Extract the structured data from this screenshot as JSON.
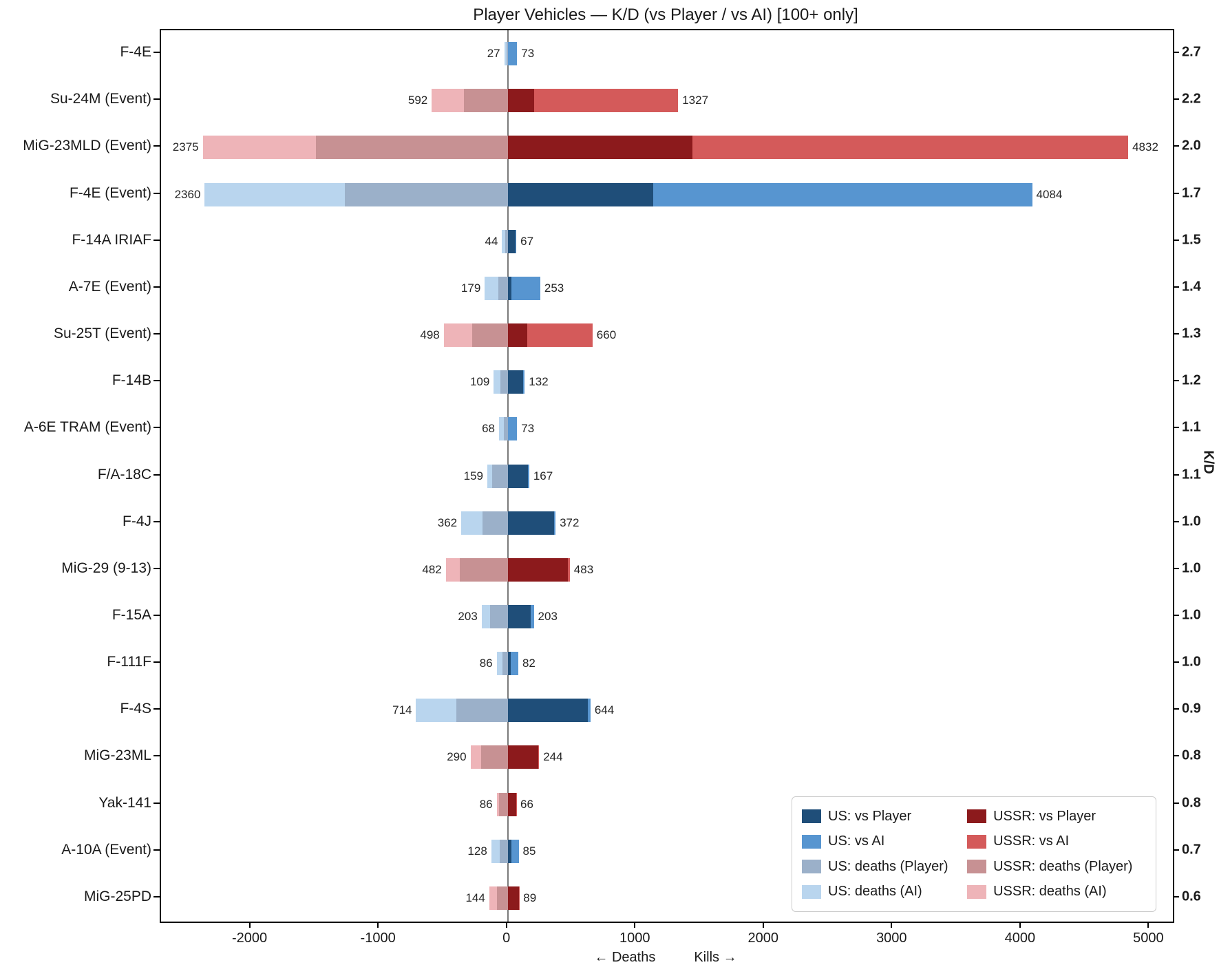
{
  "chart_data": {
    "type": "bar",
    "orientation": "horizontal-diverging-stacked",
    "title": "Player Vehicles — K/D (vs Player / vs AI) [100+ only]",
    "xlabel_left": "← Deaths",
    "xlabel_right": "Kills →",
    "ylabel_right": "K/D",
    "xlim": [
      -2700,
      5180
    ],
    "x_ticks": [
      -2000,
      -1000,
      0,
      1000,
      2000,
      3000,
      4000,
      5000
    ],
    "grid": false,
    "legend_position": "lower right",
    "colors": {
      "us_vs_player": "#1f4e79",
      "us_vs_ai": "#5795d0",
      "us_deaths_player": "#9bb0c9",
      "us_deaths_ai": "#b9d5ee",
      "ussr_vs_player": "#8c1a1c",
      "ussr_vs_ai": "#d45a5a",
      "ussr_deaths_player": "#c79193",
      "ussr_deaths_ai": "#eeb4b8",
      "zero_line": "#7a7a7a"
    },
    "legend": [
      {
        "label": "US: vs Player",
        "color": "us_vs_player"
      },
      {
        "label": "US: vs AI",
        "color": "us_vs_ai"
      },
      {
        "label": "US: deaths (Player)",
        "color": "us_deaths_player"
      },
      {
        "label": "US: deaths (AI)",
        "color": "us_deaths_ai"
      },
      {
        "label": "USSR: vs Player",
        "color": "ussr_vs_player"
      },
      {
        "label": "USSR: vs AI",
        "color": "ussr_vs_ai"
      },
      {
        "label": "USSR: deaths (Player)",
        "color": "ussr_deaths_player"
      },
      {
        "label": "USSR: deaths (AI)",
        "color": "ussr_deaths_ai"
      }
    ],
    "rows": [
      {
        "vehicle": "F-4E",
        "side": "US",
        "kd": "2.7",
        "deaths_total": 27,
        "kills_total": 73,
        "kills_vs_player": 4,
        "kills_vs_ai": 69,
        "deaths_to_player": 10,
        "deaths_to_ai": 17
      },
      {
        "vehicle": "Su-24M (Event)",
        "side": "USSR",
        "kd": "2.2",
        "deaths_total": 592,
        "kills_total": 1327,
        "kills_vs_player": 205,
        "kills_vs_ai": 1122,
        "deaths_to_player": 340,
        "deaths_to_ai": 252
      },
      {
        "vehicle": "MiG-23MLD (Event)",
        "side": "USSR",
        "kd": "2.0",
        "deaths_total": 2375,
        "kills_total": 4832,
        "kills_vs_player": 1439,
        "kills_vs_ai": 3393,
        "deaths_to_player": 1493,
        "deaths_to_ai": 882
      },
      {
        "vehicle": "F-4E (Event)",
        "side": "US",
        "kd": "1.7",
        "deaths_total": 2360,
        "kills_total": 4084,
        "kills_vs_player": 1133,
        "kills_vs_ai": 2951,
        "deaths_to_player": 1267,
        "deaths_to_ai": 1093
      },
      {
        "vehicle": "F-14A IRIAF",
        "side": "US",
        "kd": "1.5",
        "deaths_total": 44,
        "kills_total": 67,
        "kills_vs_player": 62,
        "kills_vs_ai": 5,
        "deaths_to_player": 22,
        "deaths_to_ai": 22
      },
      {
        "vehicle": "A-7E (Event)",
        "side": "US",
        "kd": "1.4",
        "deaths_total": 179,
        "kills_total": 253,
        "kills_vs_player": 27,
        "kills_vs_ai": 226,
        "deaths_to_player": 71,
        "deaths_to_ai": 108
      },
      {
        "vehicle": "Su-25T (Event)",
        "side": "USSR",
        "kd": "1.3",
        "deaths_total": 498,
        "kills_total": 660,
        "kills_vs_player": 152,
        "kills_vs_ai": 508,
        "deaths_to_player": 275,
        "deaths_to_ai": 223
      },
      {
        "vehicle": "F-14B",
        "side": "US",
        "kd": "1.2",
        "deaths_total": 109,
        "kills_total": 132,
        "kills_vs_player": 120,
        "kills_vs_ai": 12,
        "deaths_to_player": 55,
        "deaths_to_ai": 54
      },
      {
        "vehicle": "A-6E TRAM (Event)",
        "side": "US",
        "kd": "1.1",
        "deaths_total": 68,
        "kills_total": 73,
        "kills_vs_player": 4,
        "kills_vs_ai": 69,
        "deaths_to_player": 30,
        "deaths_to_ai": 38
      },
      {
        "vehicle": "F/A-18C",
        "side": "US",
        "kd": "1.1",
        "deaths_total": 159,
        "kills_total": 167,
        "kills_vs_player": 158,
        "kills_vs_ai": 9,
        "deaths_to_player": 120,
        "deaths_to_ai": 39
      },
      {
        "vehicle": "F-4J",
        "side": "US",
        "kd": "1.0",
        "deaths_total": 362,
        "kills_total": 372,
        "kills_vs_player": 360,
        "kills_vs_ai": 12,
        "deaths_to_player": 195,
        "deaths_to_ai": 167
      },
      {
        "vehicle": "MiG-29 (9-13)",
        "side": "USSR",
        "kd": "1.0",
        "deaths_total": 482,
        "kills_total": 483,
        "kills_vs_player": 470,
        "kills_vs_ai": 13,
        "deaths_to_player": 373,
        "deaths_to_ai": 109
      },
      {
        "vehicle": "F-15A",
        "side": "US",
        "kd": "1.0",
        "deaths_total": 203,
        "kills_total": 203,
        "kills_vs_player": 180,
        "kills_vs_ai": 23,
        "deaths_to_player": 138,
        "deaths_to_ai": 65
      },
      {
        "vehicle": "F-111F",
        "side": "US",
        "kd": "1.0",
        "deaths_total": 86,
        "kills_total": 82,
        "kills_vs_player": 23,
        "kills_vs_ai": 59,
        "deaths_to_player": 39,
        "deaths_to_ai": 47
      },
      {
        "vehicle": "F-4S",
        "side": "US",
        "kd": "0.9",
        "deaths_total": 714,
        "kills_total": 644,
        "kills_vs_player": 621,
        "kills_vs_ai": 23,
        "deaths_to_player": 400,
        "deaths_to_ai": 314
      },
      {
        "vehicle": "MiG-23ML",
        "side": "USSR",
        "kd": "0.8",
        "deaths_total": 290,
        "kills_total": 244,
        "kills_vs_player": 238,
        "kills_vs_ai": 6,
        "deaths_to_player": 209,
        "deaths_to_ai": 81
      },
      {
        "vehicle": "Yak-141",
        "side": "USSR",
        "kd": "0.8",
        "deaths_total": 86,
        "kills_total": 66,
        "kills_vs_player": 64,
        "kills_vs_ai": 2,
        "deaths_to_player": 66,
        "deaths_to_ai": 20
      },
      {
        "vehicle": "A-10A (Event)",
        "side": "US",
        "kd": "0.7",
        "deaths_total": 128,
        "kills_total": 85,
        "kills_vs_player": 27,
        "kills_vs_ai": 58,
        "deaths_to_player": 63,
        "deaths_to_ai": 65
      },
      {
        "vehicle": "MiG-25PD",
        "side": "USSR",
        "kd": "0.6",
        "deaths_total": 144,
        "kills_total": 89,
        "kills_vs_player": 85,
        "kills_vs_ai": 4,
        "deaths_to_player": 84,
        "deaths_to_ai": 60
      }
    ]
  }
}
